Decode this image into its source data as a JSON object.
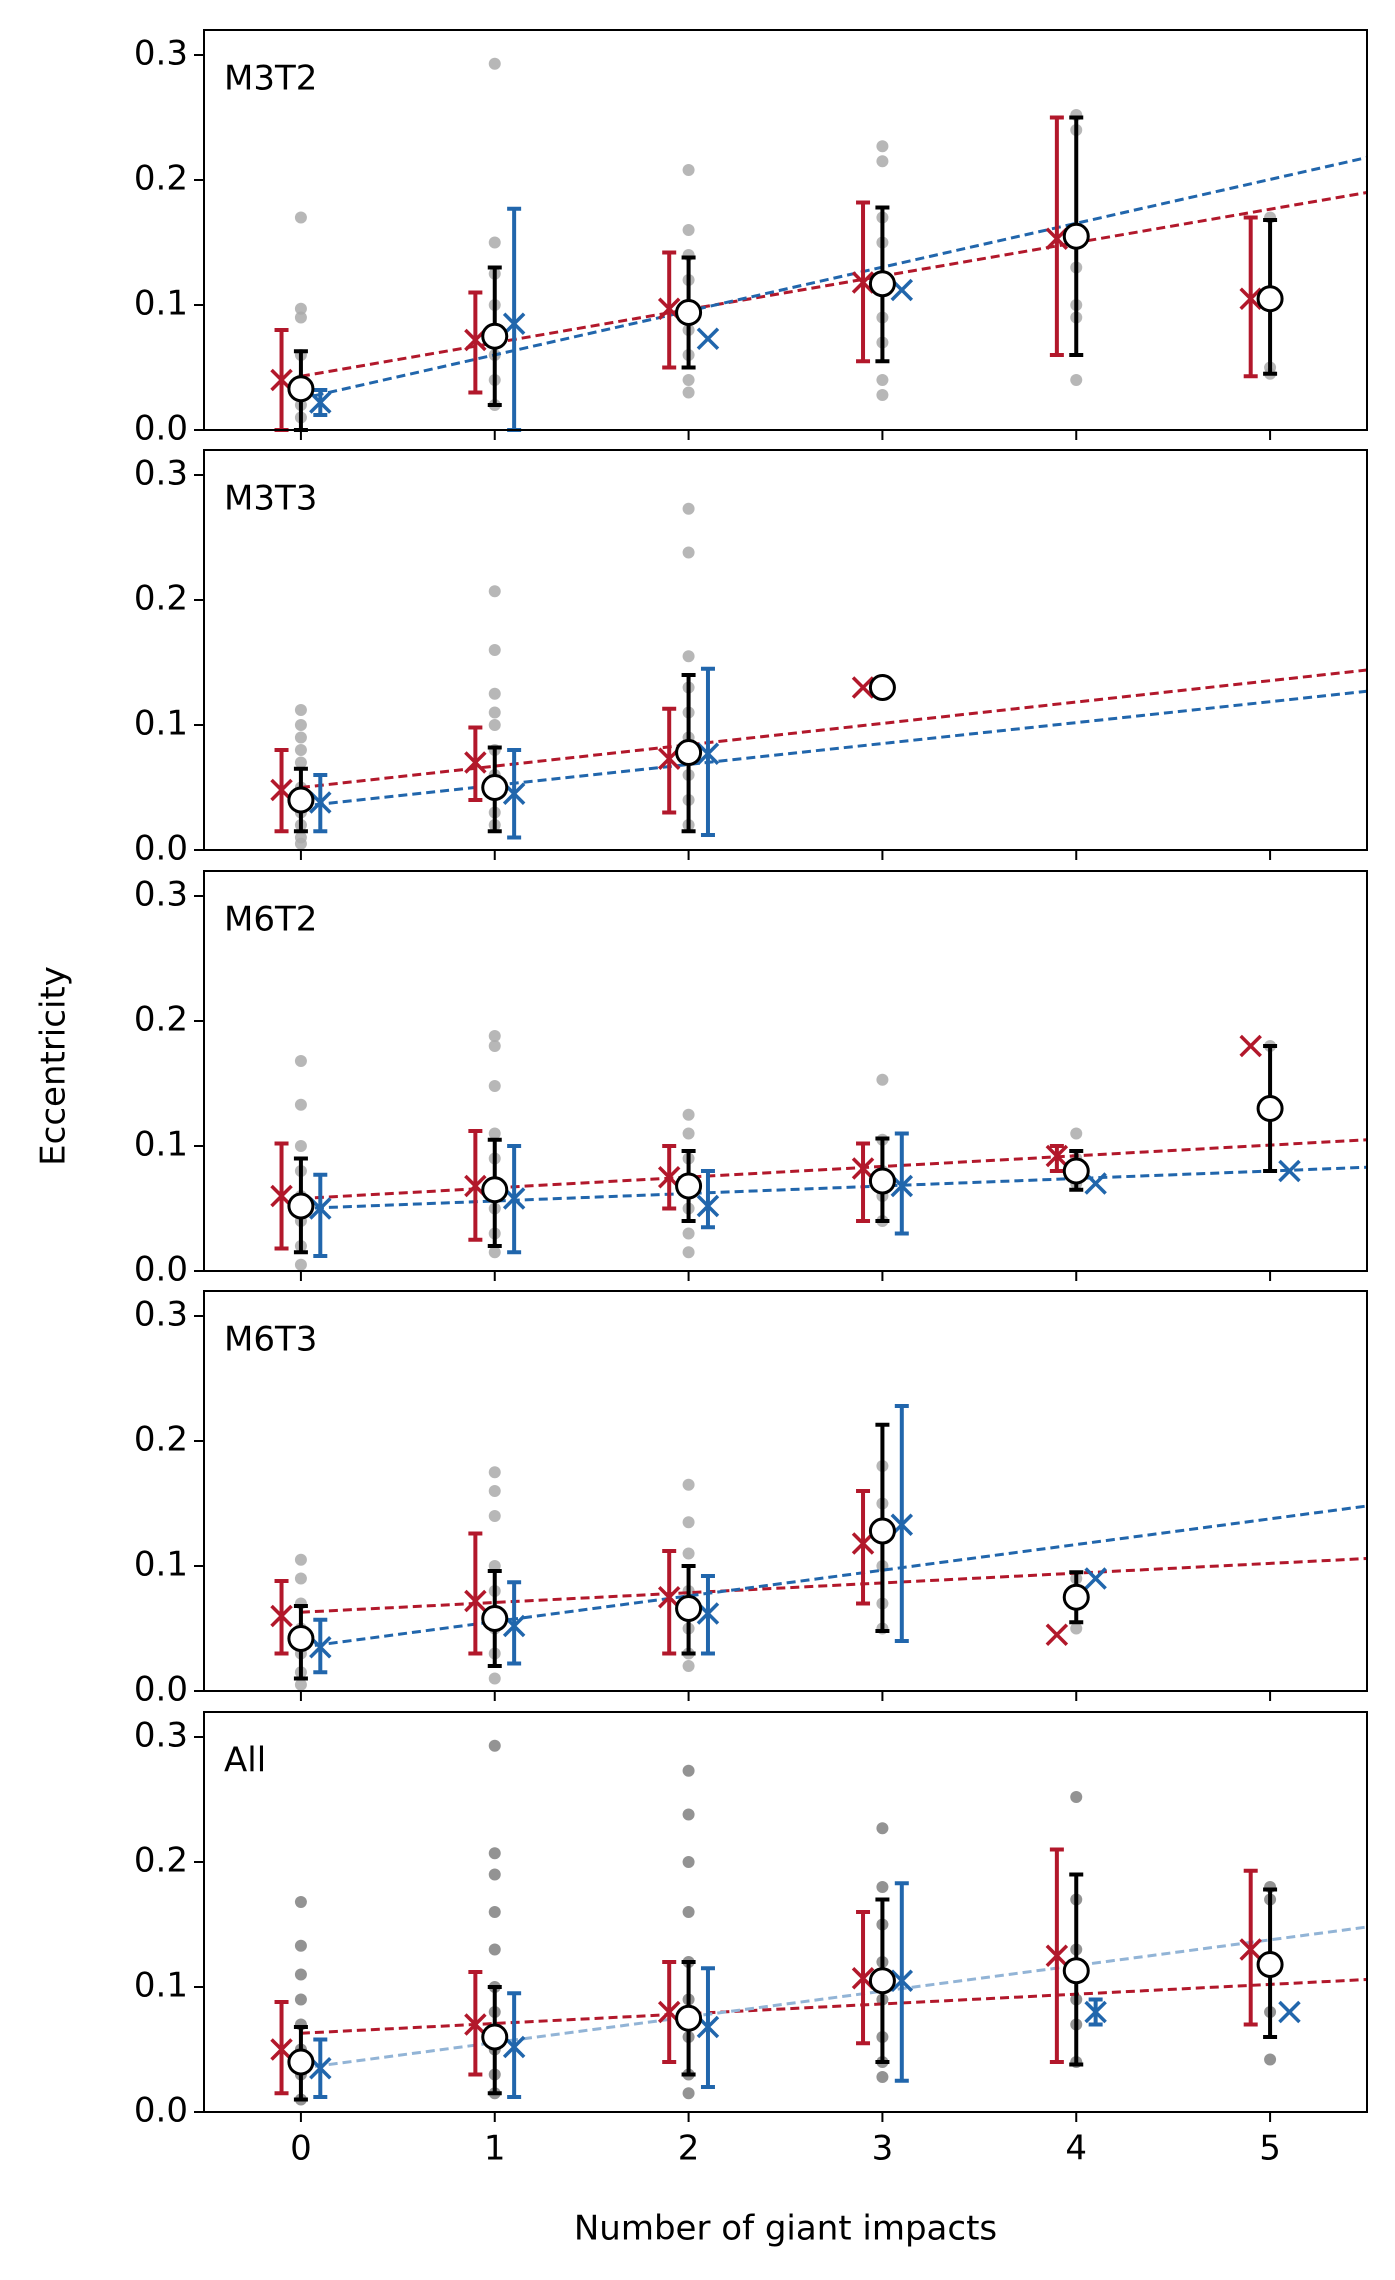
{
  "chart_data": [
    {
      "type": "errorbar",
      "label": "M3T2",
      "xlim": [
        -0.5,
        5.5
      ],
      "ylim": [
        0,
        0.32
      ],
      "xticks": [
        0,
        1,
        2,
        3,
        4,
        5
      ],
      "yticks": [
        {
          "value": 0,
          "label": "0.0"
        },
        0.1,
        0.2,
        0.3
      ],
      "points": {
        "color": "#aaaaaa",
        "values": [
          [
            0.17,
            0.097,
            0.09,
            0.06,
            0.04,
            0.03,
            0.02,
            0.01
          ],
          [
            0.293,
            0.15,
            0.125,
            0.1,
            0.08,
            0.06,
            0.04,
            0.02
          ],
          [
            0.208,
            0.16,
            0.14,
            0.12,
            0.1,
            0.08,
            0.06,
            0.04,
            0.03
          ],
          [
            0.227,
            0.215,
            0.17,
            0.15,
            0.12,
            0.09,
            0.07,
            0.04,
            0.028
          ],
          [
            0.252,
            0.24,
            0.13,
            0.1,
            0.09,
            0.04
          ],
          [
            0.17,
            0.05,
            0.045
          ]
        ]
      },
      "fits": [
        {
          "color": "#b2182b",
          "x": [
            0,
            5.5
          ],
          "y": [
            0.043,
            0.19
          ]
        },
        {
          "color": "#2166ac",
          "x": [
            0,
            5.5
          ],
          "y": [
            0.025,
            0.218
          ]
        }
      ],
      "series": [
        {
          "color": "#b2182b",
          "marker": "x",
          "values": [
            0.04,
            0.072,
            0.097,
            0.118,
            0.153,
            0.105
          ],
          "low": [
            0,
            0.03,
            0.05,
            0.055,
            0.06,
            0.043
          ],
          "high": [
            0.08,
            0.11,
            0.142,
            0.182,
            0.25,
            0.17
          ]
        },
        {
          "color": "#2166ac",
          "marker": "x",
          "values": [
            0.022,
            0.085,
            0.073,
            0.112,
            null,
            null
          ],
          "low": [
            0.012,
            0,
            null,
            null,
            null,
            null
          ],
          "high": [
            0.032,
            0.177,
            null,
            null,
            null,
            null
          ]
        },
        {
          "color": "#000000",
          "marker": "o",
          "values": [
            0.033,
            0.075,
            0.094,
            0.117,
            0.155,
            0.105
          ],
          "low": [
            0,
            0.02,
            0.05,
            0.055,
            0.06,
            0.045
          ],
          "high": [
            0.063,
            0.13,
            0.138,
            0.178,
            0.25,
            0.168
          ]
        }
      ]
    },
    {
      "type": "errorbar",
      "label": "M3T3",
      "xlim": [
        -0.5,
        5.5
      ],
      "ylim": [
        0,
        0.32
      ],
      "xticks": [
        0,
        1,
        2,
        3,
        4,
        5
      ],
      "yticks": [
        {
          "value": 0,
          "label": "0.0"
        },
        0.1,
        0.2,
        0.3
      ],
      "points": {
        "color": "#aaaaaa",
        "values": [
          [
            0.112,
            0.1,
            0.09,
            0.08,
            0.07,
            0.05,
            0.03,
            0.02,
            0.01,
            0.005
          ],
          [
            0.207,
            0.16,
            0.125,
            0.11,
            0.1,
            0.08,
            0.06,
            0.03,
            0.02
          ],
          [
            0.273,
            0.238,
            0.155,
            0.13,
            0.11,
            0.09,
            0.06,
            0.04,
            0.02
          ],
          [
            0.13
          ]
        ]
      },
      "fits": [
        {
          "color": "#b2182b",
          "x": [
            0,
            5.5
          ],
          "y": [
            0.05,
            0.144
          ]
        },
        {
          "color": "#2166ac",
          "x": [
            0,
            5.5
          ],
          "y": [
            0.035,
            0.127
          ]
        }
      ],
      "series": [
        {
          "color": "#b2182b",
          "marker": "x",
          "values": [
            0.048,
            0.07,
            0.073,
            0.13
          ],
          "low": [
            0.015,
            0.04,
            0.03,
            null
          ],
          "high": [
            0.08,
            0.098,
            0.113,
            null
          ]
        },
        {
          "color": "#2166ac",
          "marker": "x",
          "values": [
            0.038,
            0.045,
            0.077,
            null
          ],
          "low": [
            0.015,
            0.01,
            0.012,
            null
          ],
          "high": [
            0.06,
            0.08,
            0.145,
            null
          ]
        },
        {
          "color": "#000000",
          "marker": "o",
          "values": [
            0.04,
            0.05,
            0.078,
            0.13
          ],
          "low": [
            0.015,
            0.015,
            0.015,
            null
          ],
          "high": [
            0.065,
            0.082,
            0.14,
            null
          ]
        }
      ]
    },
    {
      "type": "errorbar",
      "label": "M6T2",
      "ylabel": "Eccentricity",
      "xlim": [
        -0.5,
        5.5
      ],
      "ylim": [
        0,
        0.32
      ],
      "xticks": [
        0,
        1,
        2,
        3,
        4,
        5
      ],
      "yticks": [
        {
          "value": 0,
          "label": "0.0"
        },
        0.1,
        0.2,
        0.3
      ],
      "points": {
        "color": "#aaaaaa",
        "values": [
          [
            0.168,
            0.133,
            0.1,
            0.08,
            0.06,
            0.04,
            0.02,
            0.005
          ],
          [
            0.188,
            0.18,
            0.148,
            0.11,
            0.09,
            0.07,
            0.05,
            0.03,
            0.015
          ],
          [
            0.125,
            0.11,
            0.09,
            0.07,
            0.05,
            0.03,
            0.015
          ],
          [
            0.153,
            0.105,
            0.08,
            0.06,
            0.04
          ],
          [
            0.11,
            0.09,
            0.07
          ],
          [
            0.18
          ]
        ]
      },
      "fits": [
        {
          "color": "#b2182b",
          "x": [
            0,
            5.5
          ],
          "y": [
            0.058,
            0.105
          ]
        },
        {
          "color": "#2166ac",
          "x": [
            0,
            5.5
          ],
          "y": [
            0.05,
            0.083
          ]
        }
      ],
      "series": [
        {
          "color": "#b2182b",
          "marker": "x",
          "values": [
            0.06,
            0.068,
            0.075,
            0.082,
            0.092,
            0.18
          ],
          "low": [
            0.018,
            0.025,
            0.05,
            0.04,
            0.08,
            null
          ],
          "high": [
            0.102,
            0.112,
            0.1,
            0.102,
            0.1,
            null
          ]
        },
        {
          "color": "#2166ac",
          "marker": "x",
          "values": [
            0.05,
            0.058,
            0.052,
            0.068,
            0.07,
            0.08
          ],
          "low": [
            0.012,
            0.015,
            0.035,
            0.03,
            null,
            null
          ],
          "high": [
            0.077,
            0.1,
            0.08,
            0.11,
            null,
            null
          ]
        },
        {
          "color": "#000000",
          "marker": "o",
          "values": [
            0.052,
            0.065,
            0.068,
            0.072,
            0.08,
            0.13
          ],
          "low": [
            0.015,
            0.02,
            0.04,
            0.04,
            0.065,
            0.08
          ],
          "high": [
            0.09,
            0.105,
            0.096,
            0.106,
            0.096,
            0.18
          ]
        }
      ]
    },
    {
      "type": "errorbar",
      "label": "M6T3",
      "xlim": [
        -0.5,
        5.5
      ],
      "ylim": [
        0,
        0.32
      ],
      "xticks": [
        0,
        1,
        2,
        3,
        4,
        5
      ],
      "yticks": [
        {
          "value": 0,
          "label": "0.0"
        },
        0.1,
        0.2,
        0.3
      ],
      "points": {
        "color": "#aaaaaa",
        "values": [
          [
            0.105,
            0.09,
            0.07,
            0.05,
            0.03,
            0.015,
            0.005
          ],
          [
            0.175,
            0.16,
            0.14,
            0.1,
            0.08,
            0.05,
            0.03,
            0.01
          ],
          [
            0.165,
            0.135,
            0.11,
            0.08,
            0.05,
            0.03,
            0.02
          ],
          [
            0.18,
            0.15,
            0.1,
            0.07,
            0.05
          ],
          [
            0.09,
            0.05
          ]
        ]
      },
      "fits": [
        {
          "color": "#b2182b",
          "x": [
            0,
            5.5
          ],
          "y": [
            0.063,
            0.106
          ]
        },
        {
          "color": "#2166ac",
          "x": [
            0,
            5.5
          ],
          "y": [
            0.035,
            0.148
          ]
        }
      ],
      "series": [
        {
          "color": "#b2182b",
          "marker": "x",
          "values": [
            0.06,
            0.072,
            0.075,
            0.118,
            0.045
          ],
          "low": [
            0.03,
            0.03,
            0.03,
            0.07,
            null
          ],
          "high": [
            0.088,
            0.126,
            0.112,
            0.16,
            null
          ]
        },
        {
          "color": "#2166ac",
          "marker": "x",
          "values": [
            0.035,
            0.052,
            0.062,
            0.133,
            0.09
          ],
          "low": [
            0.015,
            0.022,
            0.03,
            0.04,
            null
          ],
          "high": [
            0.057,
            0.087,
            0.092,
            0.228,
            null
          ]
        },
        {
          "color": "#000000",
          "marker": "o",
          "values": [
            0.042,
            0.058,
            0.066,
            0.128,
            0.075
          ],
          "low": [
            0.01,
            0.02,
            0.03,
            0.048,
            0.055
          ],
          "high": [
            0.068,
            0.096,
            0.1,
            0.213,
            0.095
          ]
        }
      ]
    },
    {
      "type": "errorbar",
      "label": "All",
      "xlabel": "Number of giant impacts",
      "xlim": [
        -0.5,
        5.5
      ],
      "ylim": [
        0,
        0.32
      ],
      "xticks": [
        0,
        1,
        2,
        3,
        4,
        5
      ],
      "yticks": [
        {
          "value": 0,
          "label": "0.0"
        },
        0.1,
        0.2,
        0.3
      ],
      "points": {
        "color": "#808080",
        "values": [
          [
            0.168,
            0.133,
            0.11,
            0.09,
            0.07,
            0.05,
            0.03,
            0.01
          ],
          [
            0.293,
            0.207,
            0.19,
            0.16,
            0.13,
            0.1,
            0.08,
            0.05,
            0.03,
            0.015
          ],
          [
            0.273,
            0.238,
            0.2,
            0.16,
            0.12,
            0.09,
            0.06,
            0.03,
            0.015
          ],
          [
            0.227,
            0.18,
            0.15,
            0.12,
            0.09,
            0.06,
            0.04,
            0.028
          ],
          [
            0.252,
            0.17,
            0.13,
            0.09,
            0.07,
            0.04
          ],
          [
            0.18,
            0.17,
            0.08,
            0.042
          ]
        ]
      },
      "fits": [
        {
          "color": "#b2182b",
          "x": [
            0,
            5.5
          ],
          "y": [
            0.063,
            0.106
          ]
        },
        {
          "color": "#92b4d6",
          "x": [
            0,
            5.5
          ],
          "y": [
            0.035,
            0.148
          ]
        }
      ],
      "series": [
        {
          "color": "#b2182b",
          "marker": "x",
          "values": [
            0.05,
            0.07,
            0.08,
            0.107,
            0.125,
            0.13
          ],
          "low": [
            0.015,
            0.03,
            0.04,
            0.055,
            0.04,
            0.07
          ],
          "high": [
            0.088,
            0.112,
            0.12,
            0.16,
            0.21,
            0.193
          ]
        },
        {
          "color": "#2166ac",
          "marker": "x",
          "values": [
            0.035,
            0.052,
            0.068,
            0.105,
            0.08,
            0.08
          ],
          "low": [
            0.012,
            0.012,
            0.02,
            0.025,
            0.07,
            null
          ],
          "high": [
            0.058,
            0.095,
            0.115,
            0.183,
            0.09,
            null
          ]
        },
        {
          "color": "#000000",
          "marker": "o",
          "values": [
            0.04,
            0.06,
            0.075,
            0.105,
            0.113,
            0.118
          ],
          "low": [
            0.01,
            0.015,
            0.03,
            0.04,
            0.038,
            0.06
          ],
          "high": [
            0.068,
            0.1,
            0.12,
            0.17,
            0.19,
            0.178
          ]
        }
      ]
    }
  ]
}
